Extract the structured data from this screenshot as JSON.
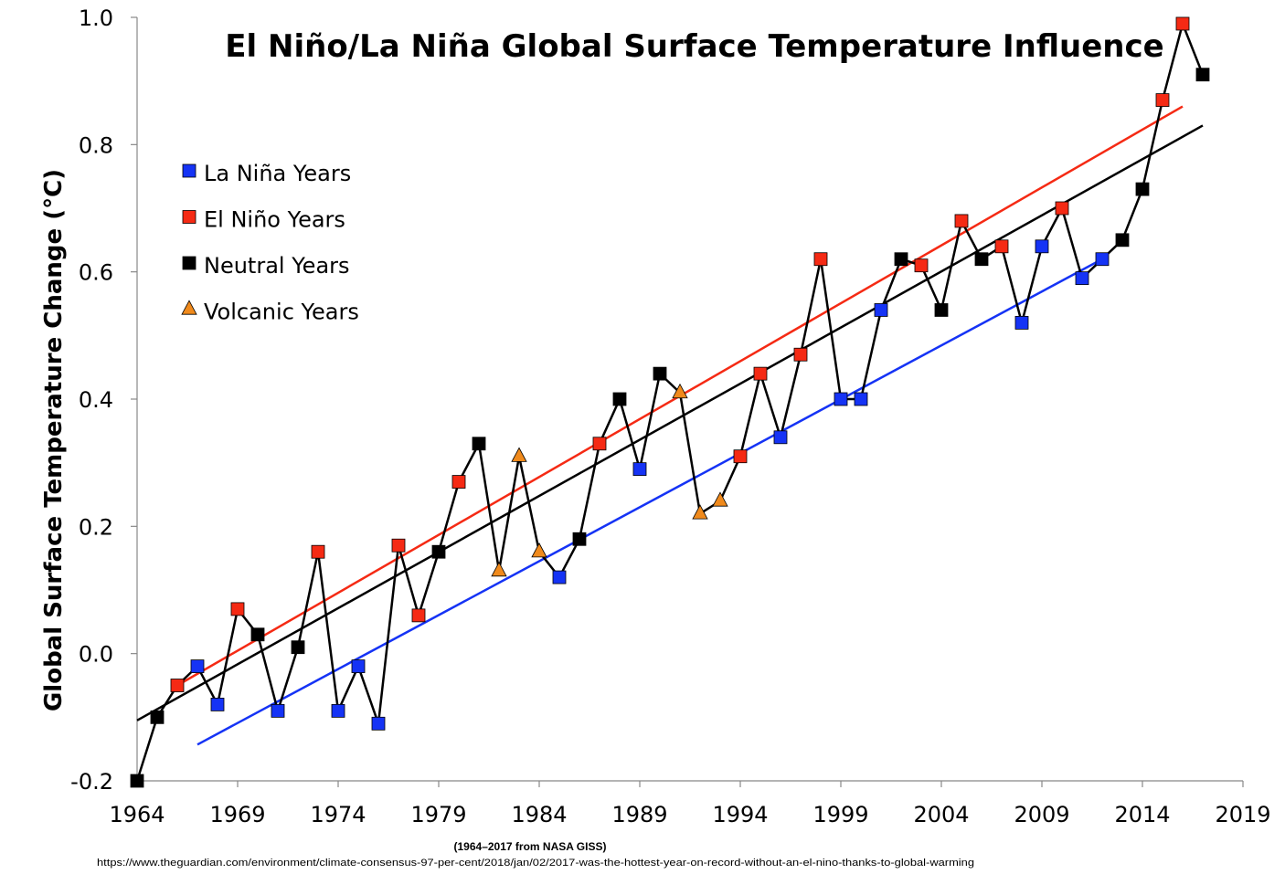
{
  "chart_data": {
    "type": "scatter",
    "title": "El Niño/La Niña Global Surface Temperature Influence",
    "xlabel": "",
    "ylabel": "Global Surface Temperature Change (°C)",
    "xlim": [
      1964,
      2019
    ],
    "ylim": [
      -0.2,
      1.0
    ],
    "x_ticks": [
      1964,
      1969,
      1974,
      1979,
      1984,
      1989,
      1994,
      1999,
      2004,
      2009,
      2014,
      2019
    ],
    "y_ticks": [
      -0.2,
      0.0,
      0.2,
      0.4,
      0.6,
      0.8,
      1.0
    ],
    "y_tick_labels": [
      "-0.2",
      "0.0",
      "0.2",
      "0.4",
      "0.6",
      "0.8",
      "1.0"
    ],
    "source_note": "(1964–2017 from NASA GISS)",
    "url": "https://www.theguardian.com/environment/climate-consensus-97-per-cent/2018/jan/02/2017-was-the-hottest-year-on-record-without-an-el-nino-thanks-to-global-warming",
    "legend": [
      {
        "label": "La Niña Years",
        "category": "lanina",
        "marker": "square",
        "color": "#1533f5"
      },
      {
        "label": "El Niño Years",
        "category": "elnino",
        "marker": "square",
        "color": "#f52a14"
      },
      {
        "label": "Neutral Years",
        "category": "neutral",
        "marker": "square",
        "color": "#000000"
      },
      {
        "label": "Volcanic Years",
        "category": "volcanic",
        "marker": "triangle",
        "color": "#f08a1c"
      }
    ],
    "colors": {
      "lanina": "#1533f5",
      "elnino": "#f52a14",
      "neutral": "#000000",
      "volcanic": "#f08a1c"
    },
    "series": [
      {
        "year": 1964,
        "value": -0.2,
        "category": "neutral"
      },
      {
        "year": 1965,
        "value": -0.1,
        "category": "neutral"
      },
      {
        "year": 1966,
        "value": -0.05,
        "category": "elnino"
      },
      {
        "year": 1967,
        "value": -0.02,
        "category": "lanina"
      },
      {
        "year": 1968,
        "value": -0.08,
        "category": "lanina"
      },
      {
        "year": 1969,
        "value": 0.07,
        "category": "elnino"
      },
      {
        "year": 1970,
        "value": 0.03,
        "category": "neutral"
      },
      {
        "year": 1971,
        "value": -0.09,
        "category": "lanina"
      },
      {
        "year": 1972,
        "value": 0.01,
        "category": "neutral"
      },
      {
        "year": 1973,
        "value": 0.16,
        "category": "elnino"
      },
      {
        "year": 1974,
        "value": -0.09,
        "category": "lanina"
      },
      {
        "year": 1975,
        "value": -0.02,
        "category": "lanina"
      },
      {
        "year": 1976,
        "value": -0.11,
        "category": "lanina"
      },
      {
        "year": 1977,
        "value": 0.17,
        "category": "elnino"
      },
      {
        "year": 1978,
        "value": 0.06,
        "category": "elnino"
      },
      {
        "year": 1979,
        "value": 0.16,
        "category": "neutral"
      },
      {
        "year": 1980,
        "value": 0.27,
        "category": "elnino"
      },
      {
        "year": 1981,
        "value": 0.33,
        "category": "neutral"
      },
      {
        "year": 1982,
        "value": 0.13,
        "category": "volcanic"
      },
      {
        "year": 1983,
        "value": 0.31,
        "category": "volcanic"
      },
      {
        "year": 1984,
        "value": 0.16,
        "category": "volcanic"
      },
      {
        "year": 1985,
        "value": 0.12,
        "category": "lanina"
      },
      {
        "year": 1986,
        "value": 0.18,
        "category": "neutral"
      },
      {
        "year": 1987,
        "value": 0.33,
        "category": "elnino"
      },
      {
        "year": 1988,
        "value": 0.4,
        "category": "neutral"
      },
      {
        "year": 1989,
        "value": 0.29,
        "category": "lanina"
      },
      {
        "year": 1990,
        "value": 0.44,
        "category": "neutral"
      },
      {
        "year": 1991,
        "value": 0.41,
        "category": "volcanic"
      },
      {
        "year": 1992,
        "value": 0.22,
        "category": "volcanic"
      },
      {
        "year": 1993,
        "value": 0.24,
        "category": "volcanic"
      },
      {
        "year": 1994,
        "value": 0.31,
        "category": "elnino"
      },
      {
        "year": 1995,
        "value": 0.44,
        "category": "elnino"
      },
      {
        "year": 1996,
        "value": 0.34,
        "category": "lanina"
      },
      {
        "year": 1997,
        "value": 0.47,
        "category": "elnino"
      },
      {
        "year": 1998,
        "value": 0.62,
        "category": "elnino"
      },
      {
        "year": 1999,
        "value": 0.4,
        "category": "lanina"
      },
      {
        "year": 2000,
        "value": 0.4,
        "category": "lanina"
      },
      {
        "year": 2001,
        "value": 0.54,
        "category": "lanina"
      },
      {
        "year": 2002,
        "value": 0.62,
        "category": "neutral"
      },
      {
        "year": 2003,
        "value": 0.61,
        "category": "elnino"
      },
      {
        "year": 2004,
        "value": 0.54,
        "category": "neutral"
      },
      {
        "year": 2005,
        "value": 0.68,
        "category": "elnino"
      },
      {
        "year": 2006,
        "value": 0.62,
        "category": "neutral"
      },
      {
        "year": 2007,
        "value": 0.64,
        "category": "elnino"
      },
      {
        "year": 2008,
        "value": 0.52,
        "category": "lanina"
      },
      {
        "year": 2009,
        "value": 0.64,
        "category": "lanina"
      },
      {
        "year": 2010,
        "value": 0.7,
        "category": "elnino"
      },
      {
        "year": 2011,
        "value": 0.59,
        "category": "lanina"
      },
      {
        "year": 2012,
        "value": 0.62,
        "category": "lanina"
      },
      {
        "year": 2013,
        "value": 0.65,
        "category": "neutral"
      },
      {
        "year": 2014,
        "value": 0.73,
        "category": "neutral"
      },
      {
        "year": 2015,
        "value": 0.87,
        "category": "elnino"
      },
      {
        "year": 2016,
        "value": 0.99,
        "category": "elnino"
      },
      {
        "year": 2017,
        "value": 0.91,
        "category": "neutral"
      }
    ],
    "trendlines": [
      {
        "name": "El Niño trend",
        "color": "#f52a14",
        "from": [
          1966,
          -0.05
        ],
        "to": [
          2016,
          0.86
        ]
      },
      {
        "name": "Overall trend",
        "color": "#000000",
        "from": [
          1964,
          -0.105
        ],
        "to": [
          2017,
          0.83
        ]
      },
      {
        "name": "La Niña trend",
        "color": "#1533f5",
        "from": [
          1967,
          -0.143
        ],
        "to": [
          2012,
          0.62
        ]
      }
    ]
  }
}
